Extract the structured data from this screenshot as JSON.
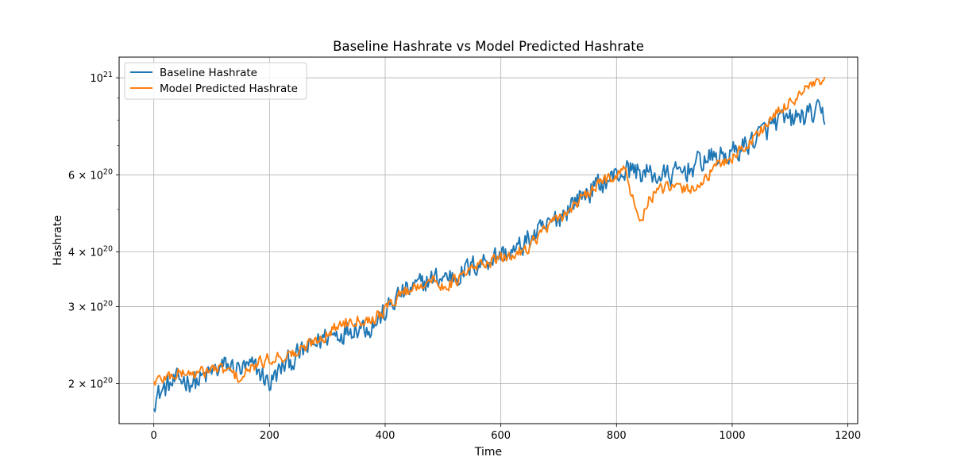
{
  "chart_data": {
    "type": "line",
    "title": "Baseline Hashrate vs Model Predicted Hashrate",
    "xlabel": "Time",
    "ylabel": "Hashrate",
    "xlim": [
      -60,
      1217
    ],
    "ylim": [
      1.62e+20,
      1.115e+21
    ],
    "yscale": "log",
    "grid": true,
    "legend_position": "upper-left",
    "x_ticks": [
      0,
      200,
      400,
      600,
      800,
      1000,
      1200
    ],
    "x_tick_labels": [
      "0",
      "200",
      "400",
      "600",
      "800",
      "1000",
      "1200"
    ],
    "y_ticks": [
      {
        "value": 2e+20,
        "mantissa": "2",
        "base": "10",
        "exp": "20"
      },
      {
        "value": 3e+20,
        "mantissa": "3",
        "base": "10",
        "exp": "20"
      },
      {
        "value": 4e+20,
        "mantissa": "4",
        "base": "10",
        "exp": "20"
      },
      {
        "value": 6e+20,
        "mantissa": "6",
        "base": "10",
        "exp": "20"
      },
      {
        "value": 1e+21,
        "mantissa": "",
        "base": "10",
        "exp": "21"
      }
    ],
    "y_minor_ticks": [
      5e+20,
      7e+20,
      8e+20,
      9e+20
    ],
    "colors": {
      "baseline": "#1f77b4",
      "model": "#ff7f0e",
      "grid": "#b0b0b0"
    },
    "series": [
      {
        "name": "Baseline Hashrate",
        "color": "#1f77b4",
        "x": [
          0,
          25,
          50,
          75,
          100,
          125,
          150,
          175,
          200,
          225,
          250,
          275,
          300,
          325,
          350,
          375,
          400,
          425,
          450,
          475,
          500,
          525,
          550,
          575,
          600,
          625,
          650,
          675,
          700,
          725,
          750,
          775,
          800,
          825,
          850,
          875,
          900,
          925,
          950,
          975,
          1000,
          1025,
          1050,
          1075,
          1100,
          1125,
          1150,
          1160
        ],
        "values": [
          1.85e+20,
          1.98e+20,
          2.05e+20,
          2.02e+20,
          2.12e+20,
          2.2e+20,
          2.15e+20,
          2.18e+20,
          2e+20,
          2.2e+20,
          2.32e+20,
          2.45e+20,
          2.58e+20,
          2.62e+20,
          2.72e+20,
          2.7e+20,
          2.9e+20,
          3.2e+20,
          3.3e+20,
          3.45e+20,
          3.5e+20,
          3.55e+20,
          3.7e+20,
          3.85e+20,
          3.95e+20,
          4e+20,
          4.3e+20,
          4.5e+20,
          4.8e+20,
          5.2e+20,
          5.5e+20,
          5.75e+20,
          6e+20,
          6.2e+20,
          6.05e+20,
          5.95e+20,
          6e+20,
          6.2e+20,
          6.5e+20,
          6.6e+20,
          6.7e+20,
          7.05e+20,
          7.45e+20,
          7.9e+20,
          8e+20,
          8.2e+20,
          8.3e+20,
          8.15e+20
        ],
        "noise": 0.055
      },
      {
        "name": "Model Predicted Hashrate",
        "color": "#ff7f0e",
        "x": [
          0,
          25,
          50,
          75,
          100,
          125,
          150,
          175,
          200,
          225,
          250,
          275,
          300,
          325,
          350,
          375,
          400,
          425,
          450,
          475,
          500,
          525,
          550,
          575,
          600,
          625,
          650,
          675,
          700,
          725,
          750,
          775,
          800,
          815,
          825,
          835,
          845,
          860,
          875,
          900,
          925,
          950,
          975,
          1000,
          1025,
          1050,
          1075,
          1100,
          1125,
          1150,
          1160
        ],
        "values": [
          2.02e+20,
          2.08e+20,
          2.12e+20,
          2.1e+20,
          2.16e+20,
          2.15e+20,
          2.05e+20,
          2.2e+20,
          2.28e+20,
          2.32e+20,
          2.35e+20,
          2.5e+20,
          2.6e+20,
          2.75e+20,
          2.82e+20,
          2.8e+20,
          2.95e+20,
          3.2e+20,
          3.32e+20,
          3.45e+20,
          3.35e+20,
          3.45e+20,
          3.65e+20,
          3.8e+20,
          3.85e+20,
          3.95e+20,
          4.15e+20,
          4.5e+20,
          4.75e+20,
          5.1e+20,
          5.4e+20,
          5.8e+20,
          6.05e+20,
          6.15e+20,
          5.5e+20,
          4.8e+20,
          4.85e+20,
          5.35e+20,
          5.55e+20,
          5.6e+20,
          5.55e+20,
          5.8e+20,
          6.3e+20,
          6.6e+20,
          7e+20,
          7.6e+20,
          8.2e+20,
          8.8e+20,
          9.4e+20,
          9.7e+20,
          9.85e+20
        ],
        "noise": 0.03
      }
    ]
  }
}
